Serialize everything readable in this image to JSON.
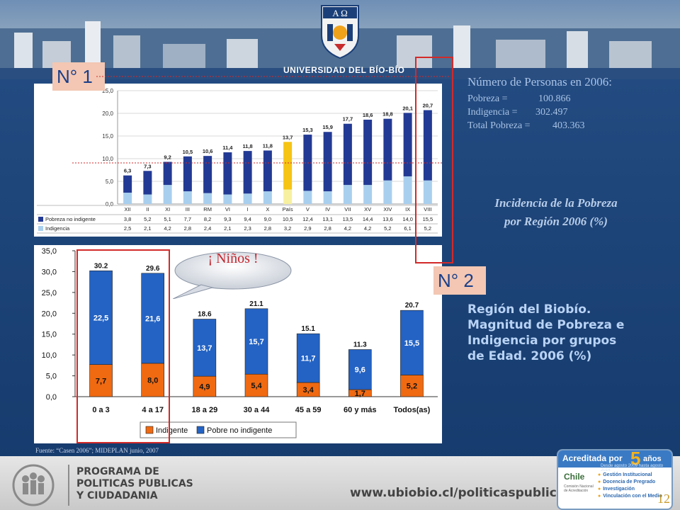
{
  "header": {
    "university": "UNIVERSIDAD DEL BÍO-BÍO",
    "crest_letters": "A Ω"
  },
  "labels": {
    "n1": "N° 1",
    "n2": "N° 2"
  },
  "info": {
    "title": "Número de Personas en 2006:",
    "rows": [
      {
        "label": "Pobreza =",
        "value": "100.866"
      },
      {
        "label": "Indigencia =",
        "value": "302.497"
      },
      {
        "label": "Total Pobreza =",
        "value": "403.363"
      }
    ]
  },
  "incidence_title": {
    "line1": "Incidencia de la Pobreza",
    "line2": "por Región 2006 (%)"
  },
  "region_title": {
    "line1": "Región del Biobío.",
    "line2": "Magnitud de Pobreza e",
    "line3": "Indigencia por grupos",
    "line4": "de Edad. 2006 (%)"
  },
  "bubble": "¡ Niños !",
  "source": "Fuente: “Casen 2006”; MIDEPLAN junio, 2007",
  "footer": {
    "program": [
      "PROGRAMA DE",
      "POLITICAS PUBLICAS",
      "Y CIUDADANIA"
    ],
    "url": "www.ubiobio.cl/politicaspublicas",
    "accreditation": {
      "title": "Acreditada por",
      "number": "5",
      "years": "años",
      "dates": "Desde agosto 2009 hasta agosto 2014",
      "agency": "Chile",
      "agency_sub": "Comisión Nacional de Acreditación",
      "areas": [
        "Gestión Institucional",
        "Docencia de Pregrado",
        "Investigación",
        "Vinculación con el Medio"
      ]
    },
    "page_number": "12"
  },
  "colors": {
    "pobre": "#2463c4",
    "indigente": "#f06a12",
    "pobre_light": "#233a94",
    "indig_light": "#a9cfee",
    "pais_top": "#f5c415",
    "pais_bottom": "#f7f0a0"
  },
  "chart_data": [
    {
      "type": "bar",
      "stacked": true,
      "title": "",
      "categories": [
        "XII",
        "II",
        "XI",
        "III",
        "RM",
        "VI",
        "I",
        "X",
        "País",
        "V",
        "IV",
        "VII",
        "XV",
        "XIV",
        "IX",
        "VIII"
      ],
      "series": [
        {
          "name": "Indigencia",
          "values": [
            2.5,
            2.1,
            4.2,
            2.8,
            2.4,
            2.1,
            2.3,
            2.8,
            3.2,
            2.9,
            2.8,
            4.2,
            4.2,
            5.2,
            6.1,
            5.2
          ]
        },
        {
          "name": "Pobreza no indigente",
          "values": [
            3.8,
            5.2,
            5.1,
            7.7,
            8.2,
            9.3,
            9.4,
            9.0,
            10.5,
            12.4,
            13.1,
            13.5,
            14.4,
            13.6,
            14.0,
            15.5
          ]
        }
      ],
      "totals": [
        "6,3",
        "7,3",
        "9,2",
        "10,5",
        "10,6",
        "11,4",
        "11,8",
        "11,8",
        "13,7",
        "15,3",
        "15,9",
        "17,7",
        "18,6",
        "18,8",
        "20,1",
        "20,7"
      ],
      "table_indigencia": [
        "2,5",
        "2,1",
        "4,2",
        "2,8",
        "2,4",
        "2,1",
        "2,3",
        "2,8",
        "3,2",
        "2,9",
        "2,8",
        "4,2",
        "4,2",
        "5,2",
        "6,1",
        "5,2"
      ],
      "table_pobreza": [
        "3,8",
        "5,2",
        "5,1",
        "7,7",
        "8,2",
        "9,3",
        "9,4",
        "9,0",
        "10,5",
        "12,4",
        "13,1",
        "13,5",
        "14,4",
        "13,6",
        "14,0",
        "15,5"
      ],
      "yticks": [
        "0,0",
        "5,0",
        "10,0",
        "15,0",
        "20,0",
        "25,0"
      ],
      "ylim": [
        0,
        25
      ]
    },
    {
      "type": "bar",
      "stacked": true,
      "title": "",
      "categories": [
        "0 a 3",
        "4 a 17",
        "18 a 29",
        "30 a 44",
        "45 a 59",
        "60 y más",
        "Todos(as)"
      ],
      "series": [
        {
          "name": "Indigente",
          "values": [
            7.7,
            8.0,
            4.9,
            5.4,
            3.4,
            1.7,
            5.2
          ],
          "labels": [
            "7,7",
            "8,0",
            "4,9",
            "5,4",
            "3,4",
            "1,7",
            "5,2"
          ]
        },
        {
          "name": "Pobre no indigente",
          "values": [
            22.5,
            21.6,
            13.7,
            15.7,
            11.7,
            9.6,
            15.5
          ],
          "labels": [
            "22,5",
            "21,6",
            "13,7",
            "15,7",
            "11,7",
            "9,6",
            "15,5"
          ]
        }
      ],
      "totals": [
        "30.2",
        "29.6",
        "18.6",
        "21.1",
        "15.1",
        "11.3",
        "20.7"
      ],
      "yticks": [
        "0,0",
        "5,0",
        "10,0",
        "15,0",
        "20,0",
        "25,0",
        "30,0",
        "35,0"
      ],
      "ylim": [
        0,
        35
      ]
    }
  ]
}
